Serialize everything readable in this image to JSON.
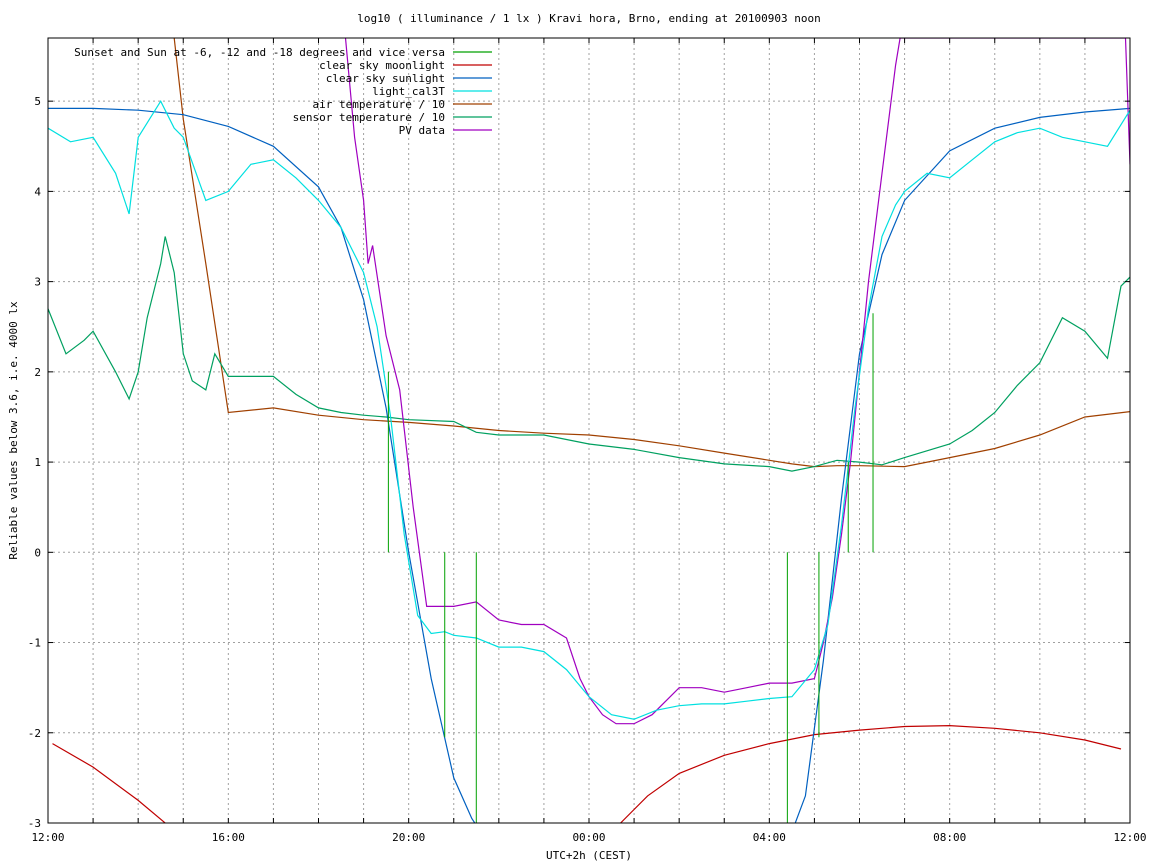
{
  "chart_data": {
    "type": "line",
    "title": "log10 ( illuminance / 1 lx ) Kravi hora, Brno, ending at 20100903 noon",
    "xlabel": "UTC+2h (CEST)",
    "ylabel": "Reliable values below 3.6, i.e. 4000 lx",
    "xlim": [
      0,
      24
    ],
    "ylim": [
      -3,
      5.7
    ],
    "x_tick_labels": [
      {
        "x": 0,
        "label": "12:00"
      },
      {
        "x": 4,
        "label": "16:00"
      },
      {
        "x": 8,
        "label": "20:00"
      },
      {
        "x": 12,
        "label": "00:00"
      },
      {
        "x": 16,
        "label": "04:00"
      },
      {
        "x": 20,
        "label": "08:00"
      },
      {
        "x": 24,
        "label": "12:00"
      }
    ],
    "x_minor_step": 1,
    "y_ticks": [
      -3,
      -2,
      -1,
      0,
      1,
      2,
      3,
      4,
      5
    ],
    "y_tick_labels": [
      "-3",
      "-2",
      "-1",
      "0",
      "1",
      "2",
      "3",
      "4",
      "5"
    ],
    "grid": true,
    "legend_position": "top-left",
    "series": [
      {
        "name": "Sunset and Sun at -6, -12 and -18 degrees and vice versa",
        "color": "#00a000",
        "style": "impulses",
        "impulses": [
          {
            "x": 7.55,
            "y0": 0,
            "y1": 2.0
          },
          {
            "x": 8.8,
            "y0": -2.05,
            "y1": 0
          },
          {
            "x": 9.5,
            "y0": -3,
            "y1": 0
          },
          {
            "x": 16.4,
            "y0": -3,
            "y1": 0
          },
          {
            "x": 17.1,
            "y0": -2.05,
            "y1": 0
          },
          {
            "x": 17.75,
            "y0": 0,
            "y1": 1.0
          },
          {
            "x": 18.3,
            "y0": 0,
            "y1": 2.65
          }
        ]
      },
      {
        "name": "clear sky moonlight",
        "color": "#c00000",
        "x": [
          0.1,
          1.0,
          2.0,
          2.6,
          3.0,
          3.2
        ],
        "y": [
          -2.12,
          -2.38,
          -2.75,
          -3.0,
          -3.3,
          -3.5
        ],
        "x2": [
          12.7,
          13.3,
          14.0,
          15.0,
          16.0,
          17.0,
          18.0,
          19.0,
          20.0,
          21.0,
          22.0,
          23.0,
          23.8
        ],
        "y2": [
          -3.0,
          -2.7,
          -2.45,
          -2.25,
          -2.12,
          -2.02,
          -1.97,
          -1.93,
          -1.92,
          -1.95,
          -2.0,
          -2.08,
          -2.18
        ]
      },
      {
        "name": "clear sky sunlight",
        "color": "#0060c0",
        "x": [
          0,
          1,
          2,
          3,
          4,
          5,
          6,
          6.5,
          7.0,
          7.5,
          8.0,
          8.5,
          9.0,
          9.4,
          9.6,
          16.5,
          16.8,
          17.2,
          17.6,
          18.0,
          18.5,
          19.0,
          20.0,
          21.0,
          22.0,
          23.0,
          24.0
        ],
        "y": [
          4.92,
          4.92,
          4.9,
          4.85,
          4.72,
          4.5,
          4.05,
          3.6,
          2.8,
          1.6,
          0.0,
          -1.4,
          -2.5,
          -2.95,
          -3.1,
          -3.1,
          -2.7,
          -1.2,
          0.6,
          2.2,
          3.3,
          3.9,
          4.45,
          4.7,
          4.82,
          4.88,
          4.92
        ]
      },
      {
        "name": "light_cal3T",
        "color": "#00e0e0",
        "x": [
          0,
          0.5,
          1.0,
          1.5,
          1.8,
          2.0,
          2.5,
          2.8,
          3.0,
          3.5,
          4.0,
          4.5,
          5.0,
          5.5,
          6.0,
          6.5,
          7.0,
          7.3,
          7.6,
          7.9,
          8.2,
          8.5,
          8.8,
          9.0,
          9.5,
          10.0,
          10.5,
          11.0,
          11.5,
          12.0,
          12.5,
          13.0,
          13.5,
          14.0,
          14.5,
          15.0,
          15.5,
          16.0,
          16.5,
          17.0,
          17.3,
          17.6,
          17.9,
          18.2,
          18.5,
          18.8,
          19.0,
          19.5,
          20.0,
          20.5,
          21.0,
          21.5,
          22.0,
          22.5,
          23.0,
          23.5,
          24.0
        ],
        "y": [
          4.7,
          4.55,
          4.6,
          4.2,
          3.75,
          4.6,
          5.0,
          4.7,
          4.6,
          3.9,
          4.0,
          4.3,
          4.35,
          4.15,
          3.9,
          3.6,
          3.1,
          2.5,
          1.5,
          0.2,
          -0.7,
          -0.9,
          -0.88,
          -0.92,
          -0.95,
          -1.05,
          -1.05,
          -1.1,
          -1.3,
          -1.6,
          -1.8,
          -1.85,
          -1.75,
          -1.7,
          -1.68,
          -1.68,
          -1.65,
          -1.62,
          -1.6,
          -1.3,
          -0.8,
          0.3,
          1.6,
          2.7,
          3.5,
          3.85,
          4.0,
          4.2,
          4.15,
          4.35,
          4.55,
          4.65,
          4.7,
          4.6,
          4.55,
          4.5,
          4.9
        ]
      },
      {
        "name": "air temperature / 10",
        "color": "#a04000",
        "x": [
          2.8,
          3.0,
          3.5,
          4.0,
          5.0,
          6.0,
          7.0,
          8.0,
          9.0,
          10.0,
          11.0,
          12.0,
          13.0,
          14.0,
          15.0,
          16.0,
          16.5,
          17.0,
          17.5,
          18.0,
          19.0,
          20.0,
          21.0,
          22.0,
          23.0,
          24.0
        ],
        "y": [
          5.7,
          4.8,
          3.2,
          1.55,
          1.6,
          1.52,
          1.47,
          1.44,
          1.4,
          1.35,
          1.32,
          1.3,
          1.25,
          1.18,
          1.1,
          1.02,
          0.98,
          0.95,
          0.96,
          0.96,
          0.95,
          1.05,
          1.15,
          1.3,
          1.5,
          1.56
        ]
      },
      {
        "name": "sensor temperature / 10",
        "color": "#00a060",
        "x": [
          0,
          0.4,
          0.8,
          1.0,
          1.5,
          1.8,
          2.0,
          2.2,
          2.5,
          2.6,
          2.8,
          3.0,
          3.2,
          3.5,
          3.7,
          4.0,
          4.5,
          5.0,
          5.5,
          6.0,
          6.5,
          7.0,
          7.5,
          8.0,
          9.0,
          9.5,
          10.0,
          11.0,
          12.0,
          13.0,
          14.0,
          15.0,
          16.0,
          16.5,
          17.0,
          17.5,
          18.0,
          18.5,
          19.0,
          20.0,
          20.5,
          21.0,
          21.5,
          22.0,
          22.5,
          23.0,
          23.5,
          23.8,
          24.0
        ],
        "y": [
          2.7,
          2.2,
          2.35,
          2.45,
          2.0,
          1.7,
          2.0,
          2.6,
          3.2,
          3.5,
          3.1,
          2.2,
          1.9,
          1.8,
          2.2,
          1.95,
          1.95,
          1.95,
          1.75,
          1.6,
          1.55,
          1.52,
          1.5,
          1.47,
          1.45,
          1.33,
          1.3,
          1.3,
          1.2,
          1.14,
          1.05,
          0.98,
          0.95,
          0.9,
          0.95,
          1.02,
          1.0,
          0.97,
          1.05,
          1.2,
          1.35,
          1.55,
          1.85,
          2.1,
          2.6,
          2.45,
          2.15,
          2.95,
          3.05
        ]
      },
      {
        "name": "PV data",
        "color": "#a000c0",
        "x": [
          6.6,
          6.8,
          7.0,
          7.1,
          7.2,
          7.5,
          7.8,
          8.1,
          8.4,
          8.7,
          9.0,
          9.5,
          10.0,
          10.5,
          11.0,
          11.5,
          11.8,
          12.0,
          12.3,
          12.6,
          13.0,
          13.4,
          13.8,
          14.0,
          14.5,
          15.0,
          15.5,
          16.0,
          16.5,
          17.0,
          17.2,
          17.4,
          17.6,
          17.8,
          18.0,
          18.2,
          18.5,
          18.8,
          18.9,
          23.9,
          24.0
        ],
        "y": [
          5.7,
          4.6,
          3.9,
          3.2,
          3.4,
          2.4,
          1.8,
          0.5,
          -0.6,
          -0.6,
          -0.6,
          -0.55,
          -0.75,
          -0.8,
          -0.8,
          -0.95,
          -1.4,
          -1.6,
          -1.8,
          -1.9,
          -1.9,
          -1.8,
          -1.6,
          -1.5,
          -1.5,
          -1.55,
          -1.5,
          -1.45,
          -1.45,
          -1.4,
          -1.0,
          -0.5,
          0.2,
          1.0,
          2.0,
          3.0,
          4.2,
          5.4,
          5.7,
          5.7,
          4.3
        ]
      }
    ]
  }
}
